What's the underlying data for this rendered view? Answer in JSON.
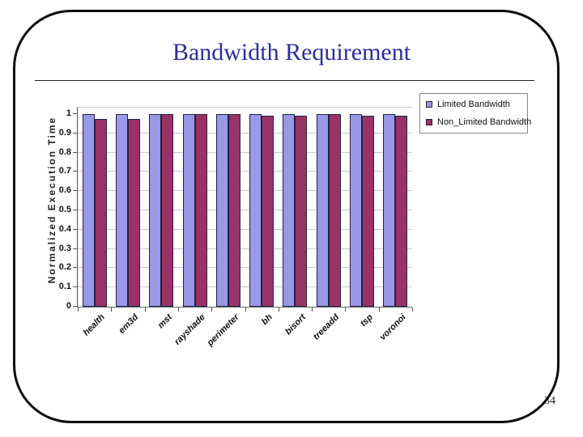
{
  "slide": {
    "title": "Bandwidth Requirement",
    "page_number": "34"
  },
  "colors": {
    "title_text": "#2E2E99",
    "limited_bar": "#9999E8",
    "non_limited_bar": "#993366",
    "gridline": "#C9C9C9",
    "axis": "#555555",
    "legend_border": "#888888"
  },
  "chart_data": {
    "type": "bar",
    "title": "",
    "xlabel": "",
    "ylabel": "Normalized Execution Time",
    "ylim": [
      0,
      1
    ],
    "ytick_labels": [
      "1",
      "0.9",
      "0.8",
      "0.7",
      "0.6",
      "0.5",
      "0.4",
      "0.3",
      "0.2",
      "0.1",
      "0"
    ],
    "grid": true,
    "legend_position": "top-right",
    "categories": [
      "health",
      "em3d",
      "mst",
      "rayshade",
      "perimeter",
      "bh",
      "bisort",
      "treeadd",
      "tsp",
      "voronoi"
    ],
    "series": [
      {
        "name": "Limited Bandwidth",
        "color": "#9999E8",
        "values": [
          1.0,
          1.0,
          1.0,
          1.0,
          1.0,
          1.0,
          1.0,
          1.0,
          1.0,
          1.0
        ]
      },
      {
        "name": "Non_Limited Bandwidth",
        "color": "#993366",
        "values": [
          0.975,
          0.975,
          1.0,
          1.0,
          1.0,
          0.99,
          0.99,
          1.0,
          0.99,
          0.99
        ]
      }
    ]
  }
}
